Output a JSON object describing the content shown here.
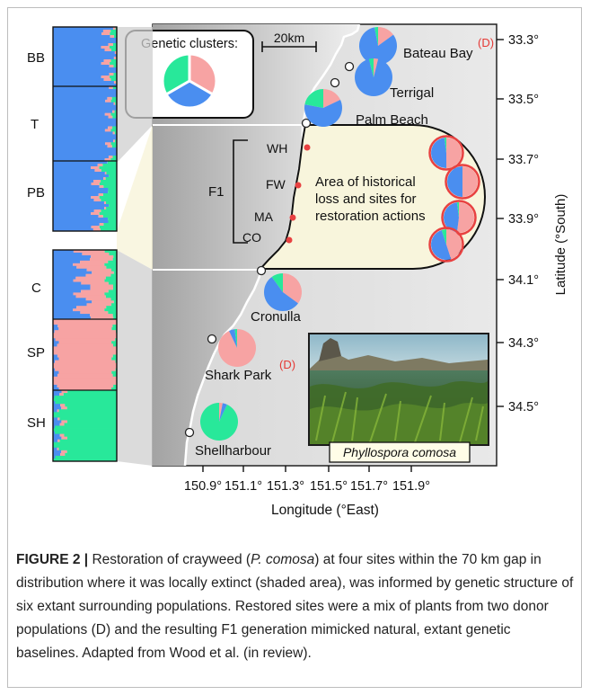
{
  "legend": {
    "title": "Genetic clusters:",
    "colors": {
      "cluster1": "#f7a3a3",
      "cluster2": "#4a8ef0",
      "cluster3": "#28e89a"
    }
  },
  "scale_bar": {
    "label": "20km"
  },
  "structure_plot": {
    "groups": [
      {
        "label": "BB",
        "mix": [
          0.06,
          0.9,
          0.04
        ]
      },
      {
        "label": "T",
        "mix": [
          0.02,
          0.96,
          0.02
        ]
      },
      {
        "label": "PB",
        "mix": [
          0.06,
          0.74,
          0.2
        ]
      },
      {
        "label": "C",
        "mix": [
          0.42,
          0.46,
          0.12
        ]
      },
      {
        "label": "SP",
        "mix": [
          0.97,
          0.02,
          0.01
        ]
      },
      {
        "label": "SH",
        "mix": [
          0.02,
          0.06,
          0.92
        ]
      }
    ]
  },
  "sites": [
    {
      "name": "Bateau Bay",
      "donor": "(D)",
      "mix": [
        0.15,
        0.82,
        0.03
      ]
    },
    {
      "name": "Terrigal",
      "mix": [
        0.04,
        0.92,
        0.04
      ]
    },
    {
      "name": "Palm Beach",
      "mix": [
        0.18,
        0.6,
        0.22
      ]
    },
    {
      "name": "Cronulla",
      "mix": [
        0.35,
        0.55,
        0.1
      ]
    },
    {
      "name": "Shark Park",
      "donor": "(D)",
      "mix": [
        0.93,
        0.05,
        0.02
      ]
    },
    {
      "name": "Shellharbour",
      "mix": [
        0.03,
        0.04,
        0.93
      ]
    }
  ],
  "restoration": {
    "text_lines": [
      "Area of historical",
      "loss and sites for",
      "restoration actions"
    ],
    "f1_label": "F1",
    "sub_sites": [
      "WH",
      "FW",
      "MA",
      "CO"
    ],
    "f1_pies": [
      {
        "mix": [
          0.5,
          0.48,
          0.02
        ]
      },
      {
        "mix": [
          0.5,
          0.5,
          0.0
        ]
      },
      {
        "mix": [
          0.52,
          0.46,
          0.02
        ]
      },
      {
        "mix": [
          0.45,
          0.5,
          0.05
        ]
      }
    ]
  },
  "axes": {
    "y_title": "Latitude (°South)",
    "y_ticks": [
      "33.3°",
      "33.5°",
      "33.7°",
      "33.9°",
      "34.1°",
      "34.3°",
      "34.5°"
    ],
    "x_title": "Longitude (°East)",
    "x_ticks": [
      "150.9°",
      "151.1°",
      "151.3°",
      "151.5°",
      "151.7°",
      "151.9°"
    ]
  },
  "photo": {
    "caption": "Phyllospora comosa"
  },
  "caption": {
    "label": "FIGURE 2 |",
    "p1": " Restoration of crayweed (",
    "species": "P. comosa",
    "p2": ") at four sites within the 70 km gap in distribution where it was locally extinct (shaded area), was informed by genetic structure of six extant surrounding populations. Restored sites were a mix of plants from two donor populations (D) and the resulting F1 generation mimicked natural, extant genetic baselines. Adapted from Wood et al. (in review)."
  }
}
